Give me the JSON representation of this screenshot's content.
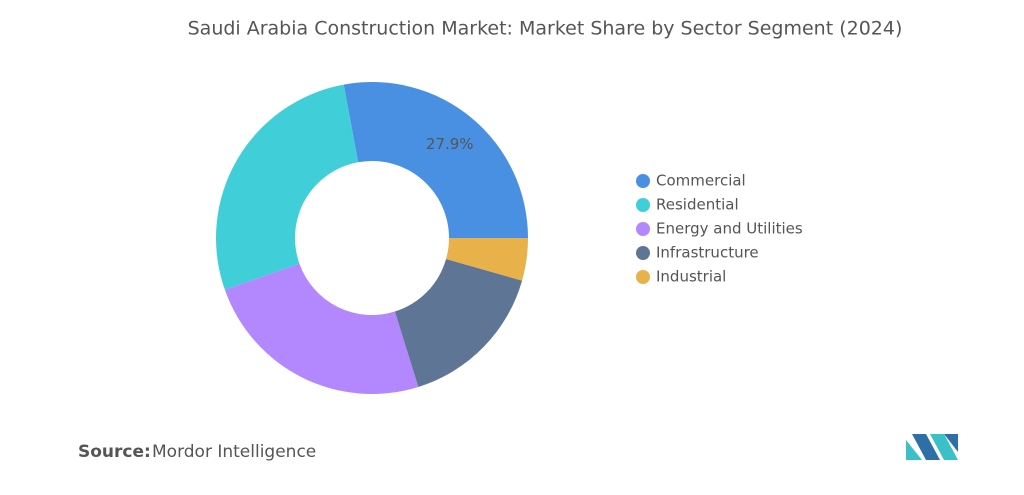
{
  "chart_data": {
    "type": "donut",
    "title": "Saudi Arabia Construction Market: Market Share by Sector Segment (2024)",
    "categories": [
      "Commercial",
      "Residential",
      "Energy and Utilities",
      "Infrastructure",
      "Industrial"
    ],
    "values": [
      27.9,
      27.5,
      24.4,
      15.8,
      4.4
    ],
    "value_labels": [
      "27.9%",
      null,
      null,
      null,
      null
    ],
    "colors": [
      "#4a90e2",
      "#40cfd9",
      "#b388ff",
      "#5f7596",
      "#e8b14a"
    ],
    "legend": "right"
  },
  "source": {
    "label": "Source:",
    "text": "Mordor Intelligence"
  }
}
